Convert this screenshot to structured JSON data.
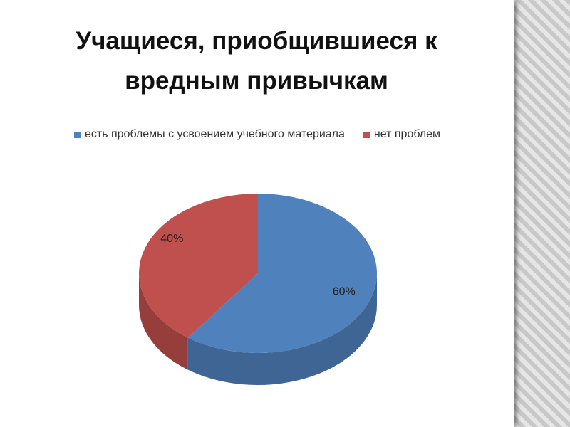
{
  "chart_data": {
    "type": "pie",
    "title": "Учащиеся, приобщившиеся к вредным привычкам",
    "categories": [
      "есть проблемы с усвоением учебного материала",
      "нет проблем"
    ],
    "values": [
      60,
      40
    ],
    "value_labels": [
      "60%",
      "40%"
    ],
    "colors": [
      "#4f81bd",
      "#c0504d"
    ],
    "legend": "top"
  }
}
